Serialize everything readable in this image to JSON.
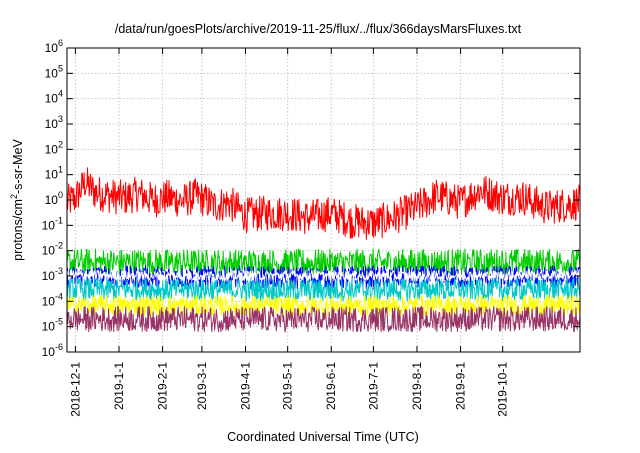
{
  "chart_data": {
    "type": "line",
    "title": "/data/run/goesPlots/archive/2019-11-25/flux/../flux/366daysMarsFluxes.txt",
    "xlabel": "Coordinated Universal Time (UTC)",
    "ylabel": {
      "pre": "protons/cm",
      "sup": "2",
      "post": "-s-sr-MeV"
    },
    "y_scale": "log",
    "ylim": [
      1e-06,
      1000000.0
    ],
    "xlim": [
      "2018-11-25",
      "2019-11-25"
    ],
    "grid": true,
    "y_ticks": [
      {
        "base": "10",
        "exp": "-6",
        "value": 1e-06
      },
      {
        "base": "10",
        "exp": "-5",
        "value": 1e-05
      },
      {
        "base": "10",
        "exp": "-4",
        "value": 0.0001
      },
      {
        "base": "10",
        "exp": "-3",
        "value": 0.001
      },
      {
        "base": "10",
        "exp": "-2",
        "value": 0.01
      },
      {
        "base": "10",
        "exp": "-1",
        "value": 0.1
      },
      {
        "base": "10",
        "exp": "0",
        "value": 1
      },
      {
        "base": "10",
        "exp": "1",
        "value": 10
      },
      {
        "base": "10",
        "exp": "2",
        "value": 100
      },
      {
        "base": "10",
        "exp": "3",
        "value": 1000
      },
      {
        "base": "10",
        "exp": "4",
        "value": 10000
      },
      {
        "base": "10",
        "exp": "5",
        "value": 100000
      },
      {
        "base": "10",
        "exp": "6",
        "value": 1000000
      }
    ],
    "x_ticks": [
      "2018-12-1",
      "2019-1-1",
      "2019-2-1",
      "2019-3-1",
      "2019-4-1",
      "2019-5-1",
      "2019-6-1",
      "2019-7-1",
      "2019-8-1",
      "2019-9-1",
      "2019-10-1"
    ],
    "series": [
      {
        "color": "#ff0000",
        "x": [
          "2018-11-25",
          "2018-12-01",
          "2018-12-08",
          "2018-12-15",
          "2018-12-25",
          "2019-01-05",
          "2019-01-15",
          "2019-01-25",
          "2019-02-05",
          "2019-02-15",
          "2019-02-25",
          "2019-03-10",
          "2019-03-20",
          "2019-04-01",
          "2019-04-15",
          "2019-05-01",
          "2019-05-15",
          "2019-06-01",
          "2019-06-15",
          "2019-07-01",
          "2019-07-15",
          "2019-08-01",
          "2019-08-15",
          "2019-09-01",
          "2019-09-15",
          "2019-10-01",
          "2019-10-15",
          "2019-11-01",
          "2019-11-25"
        ],
        "y": [
          0.8,
          1.2,
          5,
          2,
          1.5,
          1.2,
          1.8,
          1,
          1.3,
          0.9,
          1.5,
          0.6,
          0.8,
          0.25,
          0.3,
          0.3,
          0.2,
          0.3,
          0.15,
          0.12,
          0.2,
          0.5,
          1.5,
          0.8,
          2.5,
          1.2,
          1.3,
          0.5,
          0.8
        ],
        "spread": 0.7
      },
      {
        "color": "#00cc00",
        "x": [
          "2018-11-25",
          "2019-02-01",
          "2019-05-01",
          "2019-08-01",
          "2019-11-25"
        ],
        "y": [
          0.0035,
          0.0033,
          0.0032,
          0.0033,
          0.0034
        ],
        "spread": 0.55
      },
      {
        "color": "#00c8c8",
        "x": [
          "2018-11-25",
          "2019-02-01",
          "2019-05-01",
          "2019-08-01",
          "2019-11-25"
        ],
        "y": [
          0.0003,
          0.0003,
          0.00028,
          0.00029,
          0.0003
        ],
        "spread": 0.45
      },
      {
        "color": "#0000ff",
        "x": [
          "2018-11-25",
          "2019-02-01",
          "2019-05-01",
          "2019-08-01",
          "2019-11-25"
        ],
        "y": [
          0.0009,
          0.0009,
          0.00085,
          0.0009,
          0.0009
        ],
        "spread": 0.45
      },
      {
        "color": "#ffffff",
        "x": [
          "2018-11-25",
          "2019-02-01",
          "2019-05-01",
          "2019-08-01",
          "2019-11-25"
        ],
        "y": [
          0.0011,
          0.001,
          0.00105,
          0.001,
          0.0011
        ],
        "spread": 0.2
      },
      {
        "color": "#ffff00",
        "x": [
          "2018-11-25",
          "2019-02-01",
          "2019-05-01",
          "2019-08-01",
          "2019-11-25"
        ],
        "y": [
          7e-05,
          6.8e-05,
          6.5e-05,
          6.8e-05,
          7e-05
        ],
        "spread": 0.4
      },
      {
        "color": "#993366",
        "x": [
          "2018-11-25",
          "2019-02-01",
          "2019-05-01",
          "2019-08-01",
          "2019-11-25"
        ],
        "y": [
          2e-05,
          2e-05,
          1.9e-05,
          2e-05,
          2e-05
        ],
        "spread": 0.5
      }
    ]
  }
}
